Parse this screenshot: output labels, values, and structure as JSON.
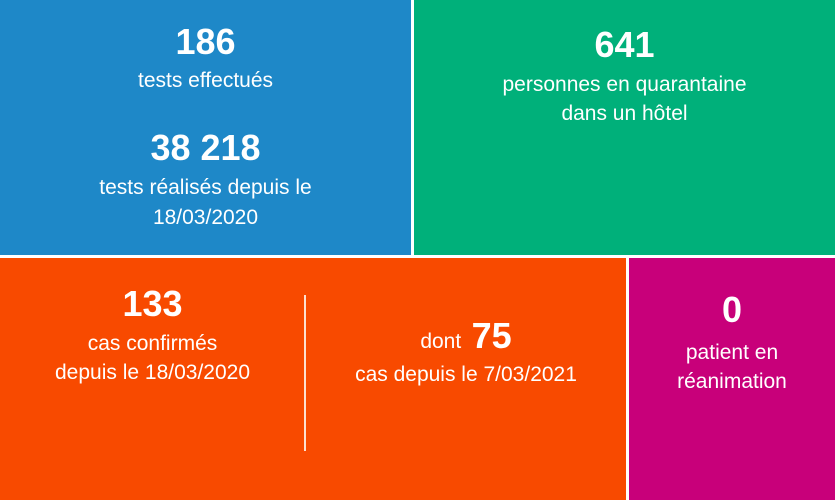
{
  "tests": {
    "count": "186",
    "label": "tests effectués",
    "total": "38 218",
    "total_label_1": "tests réalisés depuis le",
    "total_label_2": "18/03/2020"
  },
  "quarantine": {
    "count": "641",
    "label_1": "personnes en quarantaine",
    "label_2": "dans un hôtel"
  },
  "cases": {
    "count": "133",
    "label_1": "cas confirmés",
    "label_2": "depuis le 18/03/2020",
    "sub_prefix": "dont",
    "sub_count": "75",
    "sub_label": "cas depuis le 7/03/2021"
  },
  "icu": {
    "count": "0",
    "label_1": "patient en",
    "label_2": "réanimation"
  },
  "colors": {
    "blue": "#1e88c8",
    "green": "#00b07a",
    "orange": "#f84a00",
    "magenta": "#c8007a"
  }
}
